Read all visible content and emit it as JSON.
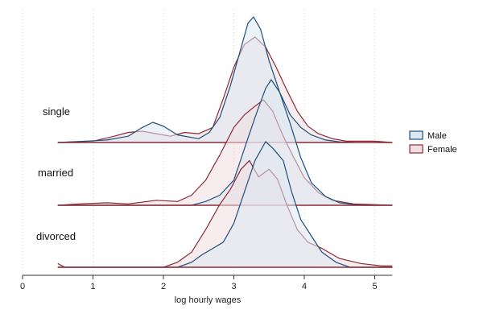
{
  "chart_data": {
    "type": "area",
    "subtype": "ridgeline-density",
    "title": "",
    "xlabel": "log hourly wages",
    "ylabel": "",
    "xlim": [
      0,
      5.25
    ],
    "xticks": [
      0,
      1,
      2,
      3,
      4,
      5
    ],
    "grid": {
      "vertical": true,
      "style": "dotted"
    },
    "legend": {
      "placement": "right"
    },
    "groups": [
      "single",
      "married",
      "divorced"
    ],
    "series": [
      {
        "name": "Male",
        "color": "#1f4e79",
        "fill": "#dfe7f1"
      },
      {
        "name": "Female",
        "color": "#8b2a35",
        "fill": "#f1dfe1"
      }
    ],
    "densities": {
      "single": {
        "Male": [
          [
            0.5,
            0
          ],
          [
            0.9,
            0.01
          ],
          [
            1.2,
            0.02
          ],
          [
            1.5,
            0.05
          ],
          [
            1.7,
            0.12
          ],
          [
            1.85,
            0.16
          ],
          [
            2.0,
            0.13
          ],
          [
            2.2,
            0.06
          ],
          [
            2.5,
            0.03
          ],
          [
            2.65,
            0.08
          ],
          [
            2.8,
            0.2
          ],
          [
            2.95,
            0.45
          ],
          [
            3.1,
            0.75
          ],
          [
            3.2,
            0.95
          ],
          [
            3.28,
            1.0
          ],
          [
            3.38,
            0.9
          ],
          [
            3.5,
            0.65
          ],
          [
            3.65,
            0.4
          ],
          [
            3.8,
            0.22
          ],
          [
            3.95,
            0.12
          ],
          [
            4.1,
            0.06
          ],
          [
            4.3,
            0.02
          ],
          [
            4.5,
            0.005
          ],
          [
            4.7,
            0
          ]
        ],
        "Female": [
          [
            0.5,
            0
          ],
          [
            1.0,
            0.01
          ],
          [
            1.3,
            0.05
          ],
          [
            1.5,
            0.08
          ],
          [
            1.7,
            0.09
          ],
          [
            1.9,
            0.07
          ],
          [
            2.1,
            0.05
          ],
          [
            2.3,
            0.08
          ],
          [
            2.5,
            0.07
          ],
          [
            2.7,
            0.12
          ],
          [
            2.85,
            0.35
          ],
          [
            3.0,
            0.6
          ],
          [
            3.15,
            0.78
          ],
          [
            3.3,
            0.84
          ],
          [
            3.45,
            0.76
          ],
          [
            3.6,
            0.6
          ],
          [
            3.75,
            0.42
          ],
          [
            3.9,
            0.25
          ],
          [
            4.05,
            0.13
          ],
          [
            4.2,
            0.07
          ],
          [
            4.4,
            0.03
          ],
          [
            4.6,
            0.01
          ],
          [
            5.0,
            0.01
          ],
          [
            5.25,
            0
          ]
        ]
      },
      "married": {
        "Male": [
          [
            0.5,
            0
          ],
          [
            1.5,
            0
          ],
          [
            2.4,
            0
          ],
          [
            2.6,
            0.03
          ],
          [
            2.8,
            0.08
          ],
          [
            3.0,
            0.2
          ],
          [
            3.15,
            0.45
          ],
          [
            3.3,
            0.7
          ],
          [
            3.45,
            0.93
          ],
          [
            3.53,
            1.0
          ],
          [
            3.65,
            0.9
          ],
          [
            3.8,
            0.65
          ],
          [
            3.95,
            0.38
          ],
          [
            4.1,
            0.18
          ],
          [
            4.3,
            0.07
          ],
          [
            4.5,
            0.02
          ],
          [
            4.8,
            0
          ],
          [
            5.25,
            0
          ]
        ],
        "Female": [
          [
            0.5,
            0
          ],
          [
            0.8,
            0.01
          ],
          [
            1.2,
            0.02
          ],
          [
            1.5,
            0.01
          ],
          [
            1.9,
            0.04
          ],
          [
            2.2,
            0.03
          ],
          [
            2.4,
            0.08
          ],
          [
            2.6,
            0.2
          ],
          [
            2.8,
            0.4
          ],
          [
            3.0,
            0.62
          ],
          [
            3.15,
            0.72
          ],
          [
            3.28,
            0.78
          ],
          [
            3.42,
            0.84
          ],
          [
            3.55,
            0.75
          ],
          [
            3.7,
            0.55
          ],
          [
            3.85,
            0.38
          ],
          [
            4.0,
            0.22
          ],
          [
            4.2,
            0.1
          ],
          [
            4.4,
            0.04
          ],
          [
            4.7,
            0.01
          ],
          [
            5.25,
            0
          ]
        ]
      },
      "divorced": {
        "Male": [
          [
            0.5,
            0
          ],
          [
            2.2,
            0
          ],
          [
            2.4,
            0.04
          ],
          [
            2.55,
            0.1
          ],
          [
            2.7,
            0.15
          ],
          [
            2.85,
            0.2
          ],
          [
            3.0,
            0.35
          ],
          [
            3.15,
            0.6
          ],
          [
            3.3,
            0.85
          ],
          [
            3.45,
            1.0
          ],
          [
            3.55,
            0.95
          ],
          [
            3.7,
            0.85
          ],
          [
            3.82,
            0.6
          ],
          [
            3.95,
            0.38
          ],
          [
            4.1,
            0.25
          ],
          [
            4.25,
            0.12
          ],
          [
            4.45,
            0.04
          ],
          [
            4.65,
            0
          ],
          [
            5.25,
            0
          ]
        ],
        "Female": [
          [
            0.5,
            0.03
          ],
          [
            0.6,
            0
          ],
          [
            2.0,
            0
          ],
          [
            2.2,
            0.04
          ],
          [
            2.4,
            0.12
          ],
          [
            2.6,
            0.3
          ],
          [
            2.8,
            0.5
          ],
          [
            2.95,
            0.62
          ],
          [
            3.1,
            0.78
          ],
          [
            3.22,
            0.85
          ],
          [
            3.35,
            0.72
          ],
          [
            3.5,
            0.78
          ],
          [
            3.62,
            0.7
          ],
          [
            3.75,
            0.5
          ],
          [
            3.9,
            0.3
          ],
          [
            4.05,
            0.2
          ],
          [
            4.25,
            0.15
          ],
          [
            4.5,
            0.07
          ],
          [
            4.8,
            0.03
          ],
          [
            5.1,
            0.01
          ],
          [
            5.25,
            0.01
          ]
        ]
      }
    }
  }
}
